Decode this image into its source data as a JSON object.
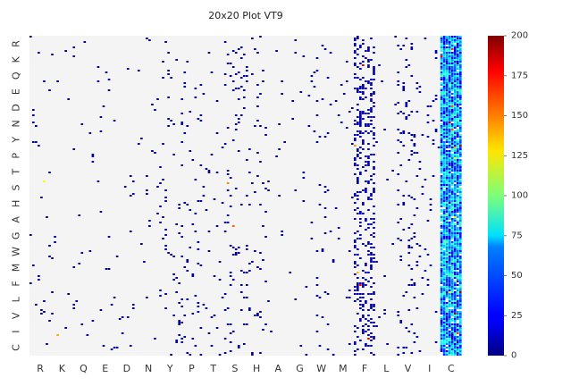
{
  "chart_data": {
    "type": "heatmap",
    "title": "20x20 Plot VT9",
    "xlabel": "",
    "ylabel": "",
    "x_categories": [
      "R",
      "K",
      "Q",
      "E",
      "D",
      "N",
      "Y",
      "P",
      "T",
      "S",
      "H",
      "A",
      "G",
      "W",
      "M",
      "F",
      "L",
      "V",
      "I",
      "C"
    ],
    "y_categories": [
      "R",
      "K",
      "Q",
      "E",
      "D",
      "N",
      "Y",
      "P",
      "T",
      "S",
      "H",
      "A",
      "G",
      "W",
      "M",
      "F",
      "L",
      "V",
      "I",
      "C"
    ],
    "colorbar": {
      "min": 0,
      "max": 200,
      "ticks": [
        0,
        25,
        50,
        75,
        100,
        125,
        150,
        175,
        200
      ],
      "colormap": "jet"
    },
    "grid": false,
    "background_color": "#f4f4f4",
    "column_density": [
      0.02,
      0.01,
      0.01,
      0.01,
      0.01,
      0.01,
      0.05,
      0.04,
      0.02,
      0.06,
      0.03,
      0.01,
      0.01,
      0.03,
      0.02,
      0.25,
      0.01,
      0.08,
      0.03,
      0.95
    ],
    "column_mean_value": [
      3,
      3,
      3,
      3,
      3,
      3,
      4,
      4,
      3,
      4,
      4,
      3,
      3,
      4,
      3,
      6,
      3,
      5,
      5,
      45
    ]
  }
}
